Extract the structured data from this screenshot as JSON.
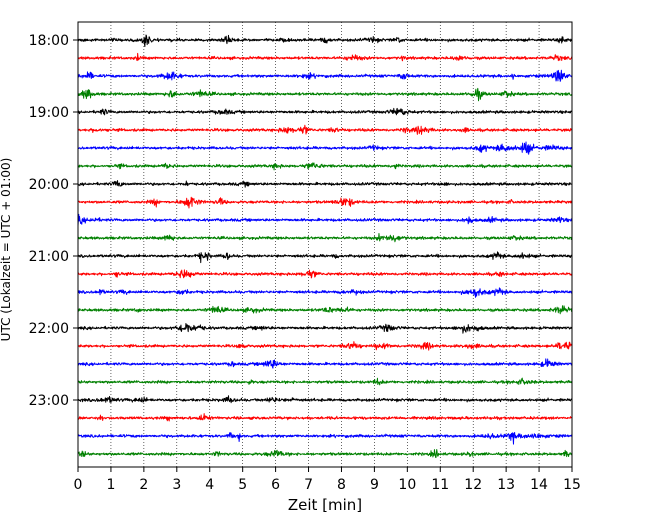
{
  "chart_data": {
    "type": "line",
    "title": "",
    "xlabel": "Zeit  [min]",
    "ylabel": "UTC (Lokalzeit = UTC + 01:00)",
    "xlim": [
      0,
      15
    ],
    "x_ticks": [
      "0",
      "1",
      "2",
      "3",
      "4",
      "5",
      "6",
      "7",
      "8",
      "9",
      "10",
      "11",
      "12",
      "13",
      "14",
      "15"
    ],
    "y_ticks": [
      "18:00",
      "19:00",
      "20:00",
      "21:00",
      "22:00",
      "23:00"
    ],
    "grid": "vertical dotted",
    "row_interval_minutes": 15,
    "traces": [
      {
        "start": "18:00",
        "color": "#000000"
      },
      {
        "start": "18:15",
        "color": "#ff0000"
      },
      {
        "start": "18:30",
        "color": "#0000ff"
      },
      {
        "start": "18:45",
        "color": "#008000"
      },
      {
        "start": "19:00",
        "color": "#000000"
      },
      {
        "start": "19:15",
        "color": "#ff0000"
      },
      {
        "start": "19:30",
        "color": "#0000ff"
      },
      {
        "start": "19:45",
        "color": "#008000"
      },
      {
        "start": "20:00",
        "color": "#000000"
      },
      {
        "start": "20:15",
        "color": "#ff0000"
      },
      {
        "start": "20:30",
        "color": "#0000ff"
      },
      {
        "start": "20:45",
        "color": "#008000"
      },
      {
        "start": "21:00",
        "color": "#000000"
      },
      {
        "start": "21:15",
        "color": "#ff0000"
      },
      {
        "start": "21:30",
        "color": "#0000ff"
      },
      {
        "start": "21:45",
        "color": "#008000"
      },
      {
        "start": "22:00",
        "color": "#000000"
      },
      {
        "start": "22:15",
        "color": "#ff0000"
      },
      {
        "start": "22:30",
        "color": "#0000ff"
      },
      {
        "start": "22:45",
        "color": "#008000"
      },
      {
        "start": "23:00",
        "color": "#000000"
      },
      {
        "start": "23:15",
        "color": "#ff0000"
      },
      {
        "start": "23:30",
        "color": "#0000ff"
      },
      {
        "start": "23:45",
        "color": "#008000"
      }
    ]
  }
}
